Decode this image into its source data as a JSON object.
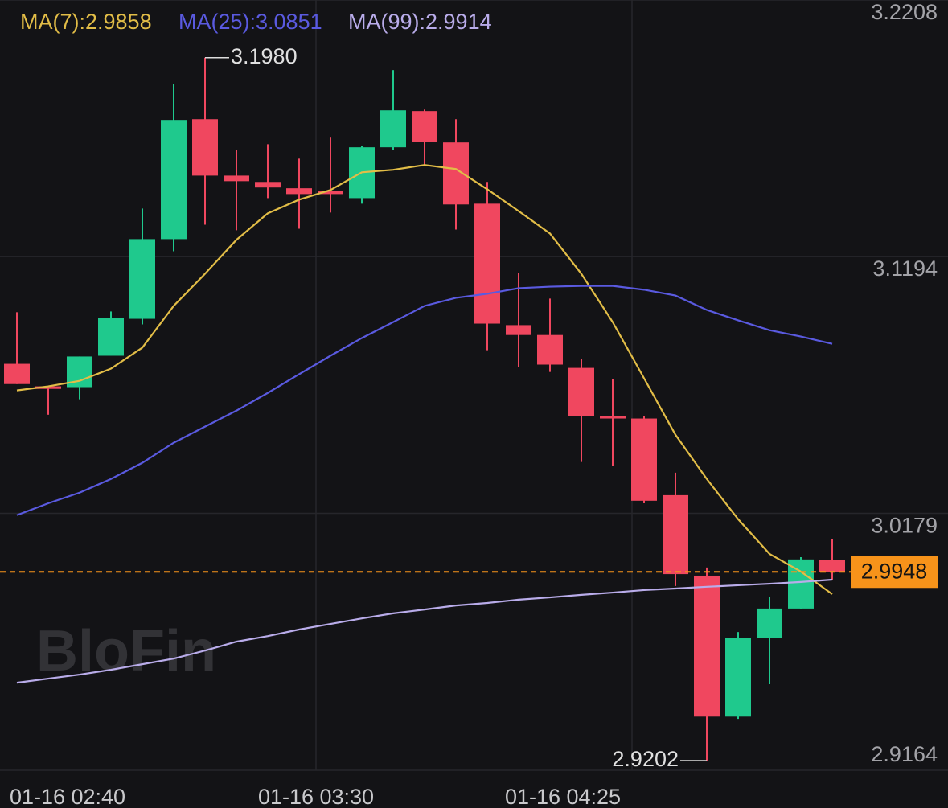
{
  "chart_data": {
    "type": "candlestick",
    "watermark": "BloFin",
    "legend": [
      {
        "label": "MA(7):2.9858",
        "color": "#e2bd47"
      },
      {
        "label": "MA(25):3.0851",
        "color": "#5a5ae0"
      },
      {
        "label": "MA(99):2.9914",
        "color": "#b9acea"
      }
    ],
    "up_color": "#1fc98d",
    "down_color": "#f0475f",
    "open": [
      3.077,
      3.0681,
      3.0678,
      3.0802,
      3.0948,
      3.1263,
      3.1737,
      3.1514,
      3.1489,
      3.1464,
      3.1454,
      3.1425,
      3.1626,
      3.1769,
      3.1645,
      3.1403,
      3.0923,
      3.0884,
      3.0754,
      3.0563,
      3.0554,
      3.0251,
      2.9933,
      2.9376,
      2.9688,
      2.9803,
      2.9994
    ],
    "high": [
      3.0974,
      3.0681,
      3.0799,
      3.0977,
      3.1384,
      3.1877,
      3.198,
      3.1616,
      3.1638,
      3.1581,
      3.1664,
      3.1632,
      3.1931,
      3.1775,
      3.1737,
      3.1489,
      3.1129,
      3.1028,
      3.0789,
      3.0709,
      3.0563,
      3.034,
      2.9965,
      2.971,
      2.985,
      3.0006,
      3.0076
    ],
    "low": [
      3.069,
      3.0569,
      3.063,
      3.0802,
      3.0926,
      3.1215,
      3.132,
      3.1298,
      3.1425,
      3.1304,
      3.1368,
      3.1403,
      3.1616,
      3.1556,
      3.1301,
      3.0824,
      3.0757,
      3.0738,
      3.0382,
      3.0366,
      3.0219,
      2.9892,
      2.9202,
      2.9367,
      2.9504,
      2.9803,
      2.9917
    ],
    "close": [
      3.069,
      3.0671,
      3.0799,
      3.0951,
      3.1263,
      3.1734,
      3.1514,
      3.1492,
      3.1467,
      3.1441,
      3.1441,
      3.1626,
      3.1772,
      3.1648,
      3.14,
      3.0929,
      3.0884,
      3.0767,
      3.0563,
      3.0554,
      3.0229,
      2.9939,
      2.9376,
      2.9688,
      2.9803,
      2.9997,
      2.9948
    ],
    "series": [
      {
        "name": "MA(7)",
        "color": "#e2bd47",
        "values": [
          3.0665,
          3.0681,
          3.0703,
          3.0751,
          3.0834,
          3.0999,
          3.1126,
          3.126,
          3.1365,
          3.1419,
          3.1457,
          3.1527,
          3.1537,
          3.1556,
          3.154,
          3.146,
          3.1374,
          3.1285,
          3.1126,
          3.0935,
          3.0713,
          3.049,
          3.0315,
          3.0156,
          3.0019,
          2.9949,
          2.986
        ]
      },
      {
        "name": "MA(25)",
        "color": "#5a5ae0",
        "values": [
          3.0172,
          3.0219,
          3.0261,
          3.0315,
          3.0379,
          3.0458,
          3.0522,
          3.0585,
          3.0655,
          3.0729,
          3.0802,
          3.0872,
          3.0935,
          3.0999,
          3.1031,
          3.1047,
          3.1069,
          3.1075,
          3.1078,
          3.1078,
          3.1063,
          3.104,
          3.0983,
          3.0942,
          3.0903,
          3.0878,
          3.0849
        ]
      },
      {
        "name": "MA(99)",
        "color": "#b9acea",
        "values": [
          2.951,
          2.9526,
          2.9542,
          2.9561,
          2.9583,
          2.9605,
          2.9637,
          2.9672,
          2.9694,
          2.972,
          2.9742,
          2.9764,
          2.9784,
          2.9799,
          2.9815,
          2.9825,
          2.9838,
          2.9847,
          2.9857,
          2.9866,
          2.9876,
          2.9882,
          2.9889,
          2.9895,
          2.9901,
          2.9908,
          2.9917
        ]
      }
    ],
    "last_price": 2.9948,
    "last_price_color": "#f7931a",
    "annotations": [
      {
        "value": 3.198,
        "label": "3.1980",
        "candle": 6
      },
      {
        "value": 2.9202,
        "label": "2.9202",
        "candle": 22
      }
    ],
    "ylim": [
      2.9164,
      3.2208
    ],
    "yticks": [
      3.2208,
      3.1194,
      3.0179,
      2.9164
    ],
    "x_labels": [
      "01-16 02:40",
      "01-16 03:30",
      "01-16 04:25"
    ],
    "grid": true
  }
}
